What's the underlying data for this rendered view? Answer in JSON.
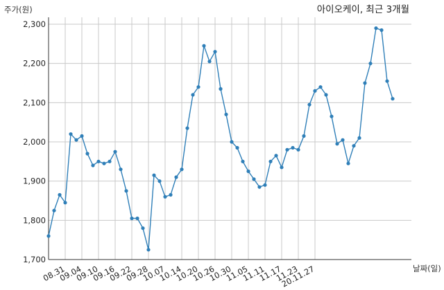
{
  "chart_data": {
    "type": "line",
    "title": "아이오케이, 최근 3개월",
    "ylabel": "주가(원)",
    "xlabel": "날짜(일)",
    "ylim": [
      1700,
      2300
    ],
    "yticks": [
      1700,
      1800,
      1900,
      2000,
      2100,
      2200,
      2300
    ],
    "ytick_labels": [
      "1,700",
      "1,800",
      "1,900",
      "2,000",
      "2,100",
      "2,200",
      "2,300"
    ],
    "xtick_labels": [
      "08.31",
      "09.04",
      "09.10",
      "09.16",
      "09.22",
      "09.28",
      "10.07",
      "10.14",
      "10.20",
      "10.26",
      "10.30",
      "11.05",
      "11.11",
      "11.17",
      "11.23",
      "20.11.27"
    ],
    "xtick_index": [
      3,
      6,
      9,
      12,
      15,
      18,
      21,
      24,
      27,
      30,
      33,
      36,
      39,
      42,
      45,
      48
    ],
    "grid": true,
    "line_color": "#2f7fb8",
    "series": [
      {
        "values": [
          1760,
          1825,
          1865,
          1845,
          2020,
          2005,
          2015,
          1970,
          1940,
          1950,
          1945,
          1950,
          1975,
          1930,
          1875,
          1805,
          1805,
          1780,
          1725,
          1915,
          1900,
          1860,
          1865,
          1910,
          1930,
          2035,
          2120,
          2140,
          2245,
          2205,
          2230,
          2135,
          2070,
          2000,
          1985,
          1950,
          1925,
          1905,
          1885,
          1890,
          1950,
          1965,
          1935,
          1980,
          1985,
          1980,
          2015,
          2095,
          2130,
          2140,
          2120,
          2065,
          1995,
          2005,
          1945,
          1990,
          2010,
          2150,
          2200,
          2290,
          2285,
          2155,
          2110
        ]
      }
    ]
  }
}
